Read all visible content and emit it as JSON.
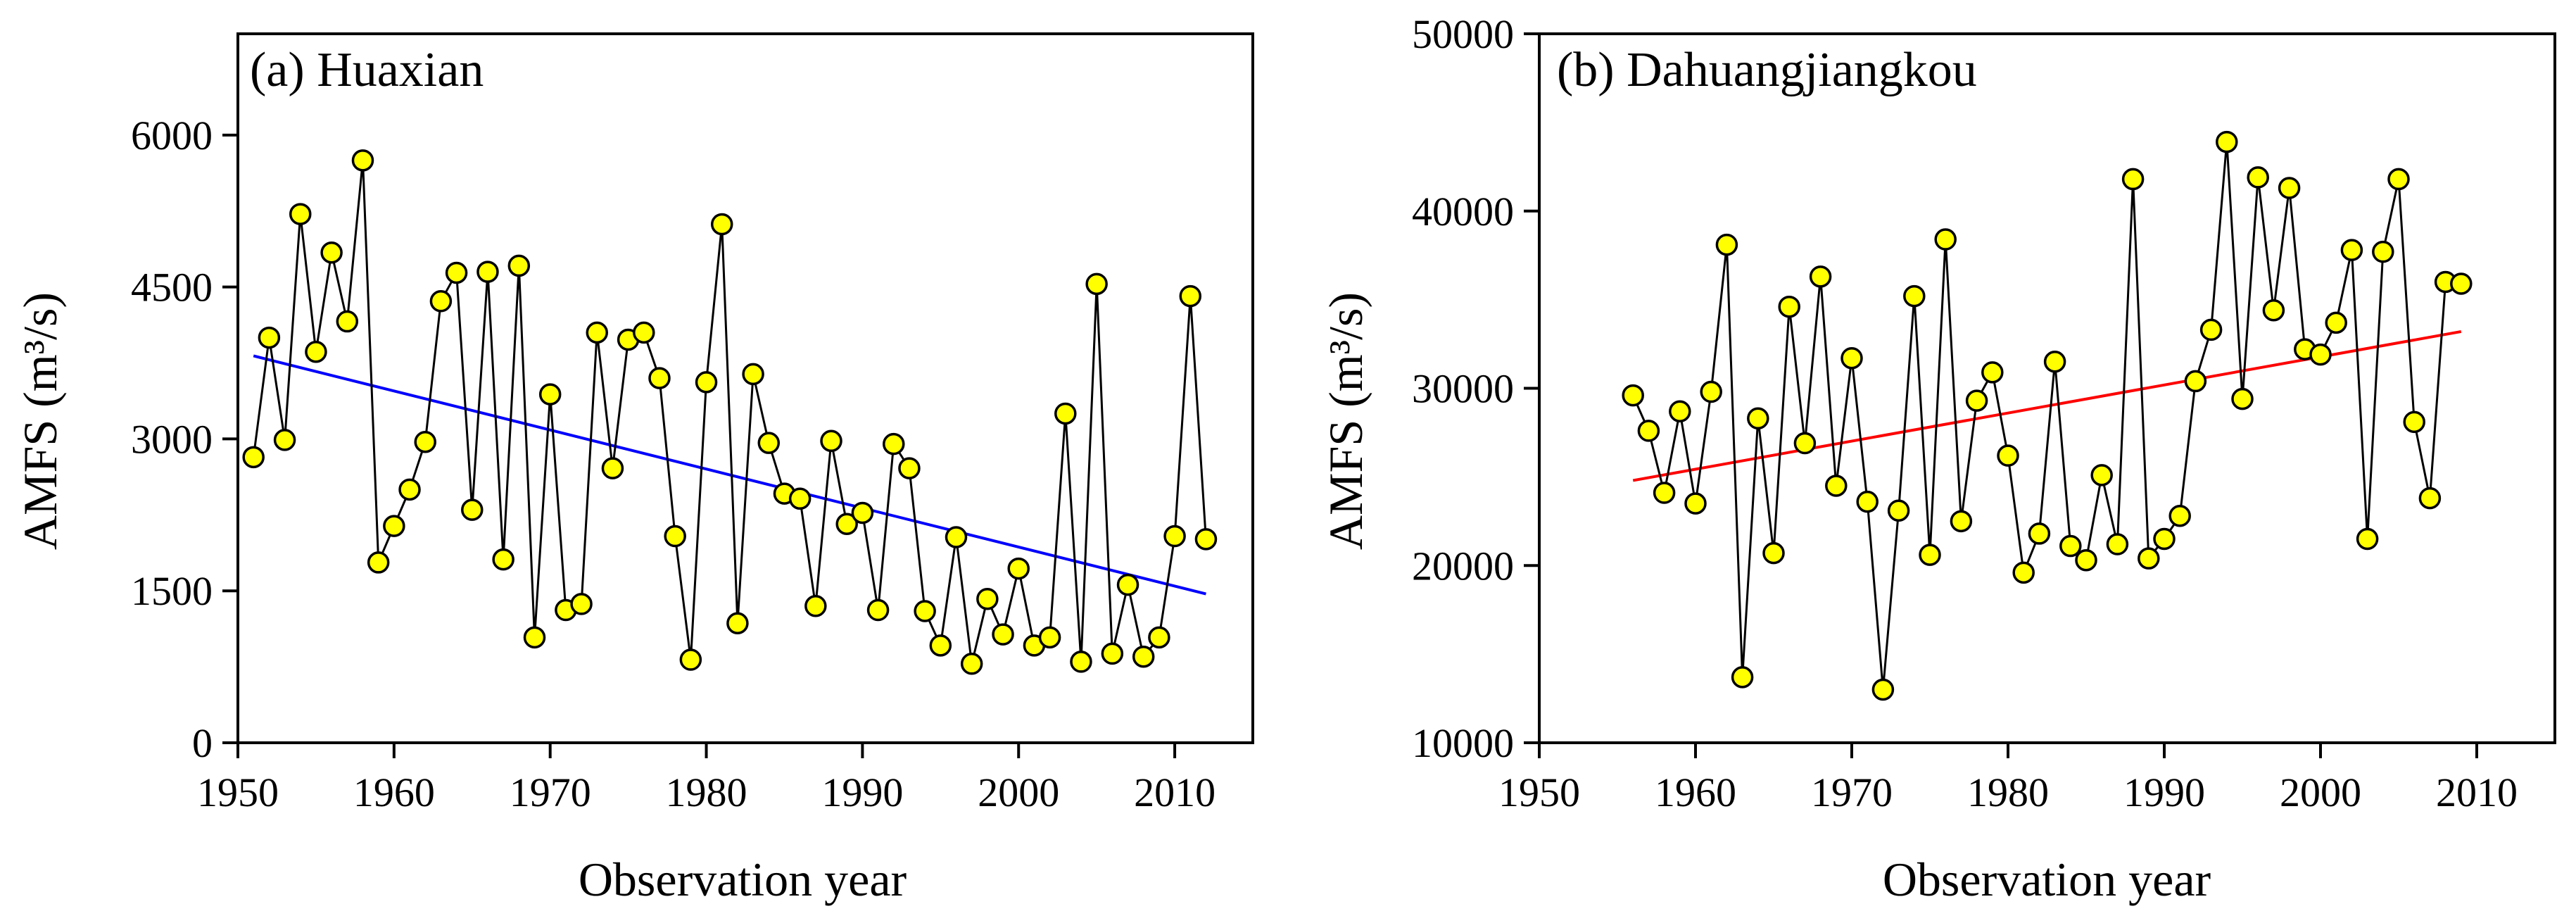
{
  "chart_data": [
    {
      "type": "scatter",
      "panel_label": "(a) Huaxian",
      "xlabel": "Observation year",
      "ylabel": "AMFS (m³/s)",
      "xlim": [
        1950,
        2015
      ],
      "ylim": [
        0,
        7000
      ],
      "xticks": [
        1950,
        1960,
        1970,
        1980,
        1990,
        2000,
        2010
      ],
      "yticks": [
        0,
        1500,
        3000,
        4500,
        6000
      ],
      "ytick_labels": [
        "0",
        "1500",
        "3000",
        "4500",
        "6000"
      ],
      "marker_color": "#ffff00",
      "trend_color": "#0000ff",
      "trend": {
        "x": [
          1951,
          2012
        ],
        "y": [
          3820,
          1470
        ]
      },
      "series": [
        {
          "name": "AMFS",
          "x": [
            1951,
            1952,
            1953,
            1954,
            1955,
            1956,
            1957,
            1958,
            1959,
            1960,
            1961,
            1962,
            1963,
            1964,
            1965,
            1966,
            1967,
            1968,
            1969,
            1970,
            1971,
            1972,
            1973,
            1974,
            1975,
            1976,
            1977,
            1978,
            1979,
            1980,
            1981,
            1982,
            1983,
            1984,
            1985,
            1986,
            1987,
            1988,
            1989,
            1990,
            1991,
            1992,
            1993,
            1994,
            1995,
            1996,
            1997,
            1998,
            1999,
            2000,
            2001,
            2002,
            2003,
            2004,
            2005,
            2006,
            2007,
            2008,
            2009,
            2010,
            2011,
            2012
          ],
          "y": [
            2820,
            4000,
            2990,
            5220,
            3860,
            4840,
            4160,
            5750,
            1780,
            2140,
            2500,
            2970,
            4360,
            4640,
            2300,
            4650,
            1810,
            4710,
            1040,
            3440,
            1310,
            1370,
            4050,
            2710,
            3980,
            4050,
            3600,
            2040,
            820,
            3560,
            5120,
            1180,
            3640,
            2960,
            2460,
            2410,
            1350,
            2980,
            2160,
            2270,
            1310,
            2950,
            2710,
            1300,
            960,
            2030,
            780,
            1420,
            1070,
            1720,
            960,
            1040,
            3250,
            800,
            4530,
            880,
            1560,
            850,
            1040,
            2040,
            4410,
            2010
          ]
        }
      ]
    },
    {
      "type": "scatter",
      "panel_label": "(b) Dahuangjiangkou",
      "xlabel": "Observation year",
      "ylabel": "AMFS (m³/s)",
      "xlim": [
        1950,
        2015
      ],
      "ylim": [
        10000,
        50000
      ],
      "xticks": [
        1950,
        1960,
        1970,
        1980,
        1990,
        2000,
        2010
      ],
      "yticks": [
        10000,
        20000,
        30000,
        40000,
        50000
      ],
      "ytick_labels": [
        "10000",
        "20000",
        "30000",
        "40000",
        "50000"
      ],
      "marker_color": "#ffff00",
      "trend_color": "#ff0000",
      "trend": {
        "x": [
          1956,
          2009
        ],
        "y": [
          24800,
          33200
        ]
      },
      "series": [
        {
          "name": "AMFS",
          "x": [
            1956,
            1957,
            1958,
            1959,
            1960,
            1961,
            1962,
            1963,
            1964,
            1965,
            1966,
            1967,
            1968,
            1969,
            1970,
            1971,
            1972,
            1973,
            1974,
            1975,
            1976,
            1977,
            1978,
            1979,
            1980,
            1981,
            1982,
            1983,
            1984,
            1985,
            1986,
            1987,
            1988,
            1989,
            1990,
            1991,
            1992,
            1993,
            1994,
            1995,
            1996,
            1997,
            1998,
            1999,
            2000,
            2001,
            2002,
            2003,
            2004,
            2005,
            2006,
            2007,
            2008,
            2009
          ],
          "y": [
            29600,
            27600,
            24100,
            28700,
            23500,
            29800,
            38100,
            13700,
            28300,
            20700,
            34600,
            26900,
            36300,
            24500,
            31700,
            23600,
            13000,
            23100,
            35200,
            20600,
            38400,
            22500,
            29300,
            30900,
            26200,
            19600,
            21800,
            31500,
            21100,
            20300,
            25100,
            21200,
            41800,
            20400,
            21500,
            22800,
            30400,
            33300,
            43900,
            29400,
            41900,
            34400,
            41300,
            32200,
            31900,
            33700,
            37800,
            21500,
            37700,
            41800,
            28100,
            23800,
            36000,
            35900
          ]
        }
      ]
    }
  ]
}
